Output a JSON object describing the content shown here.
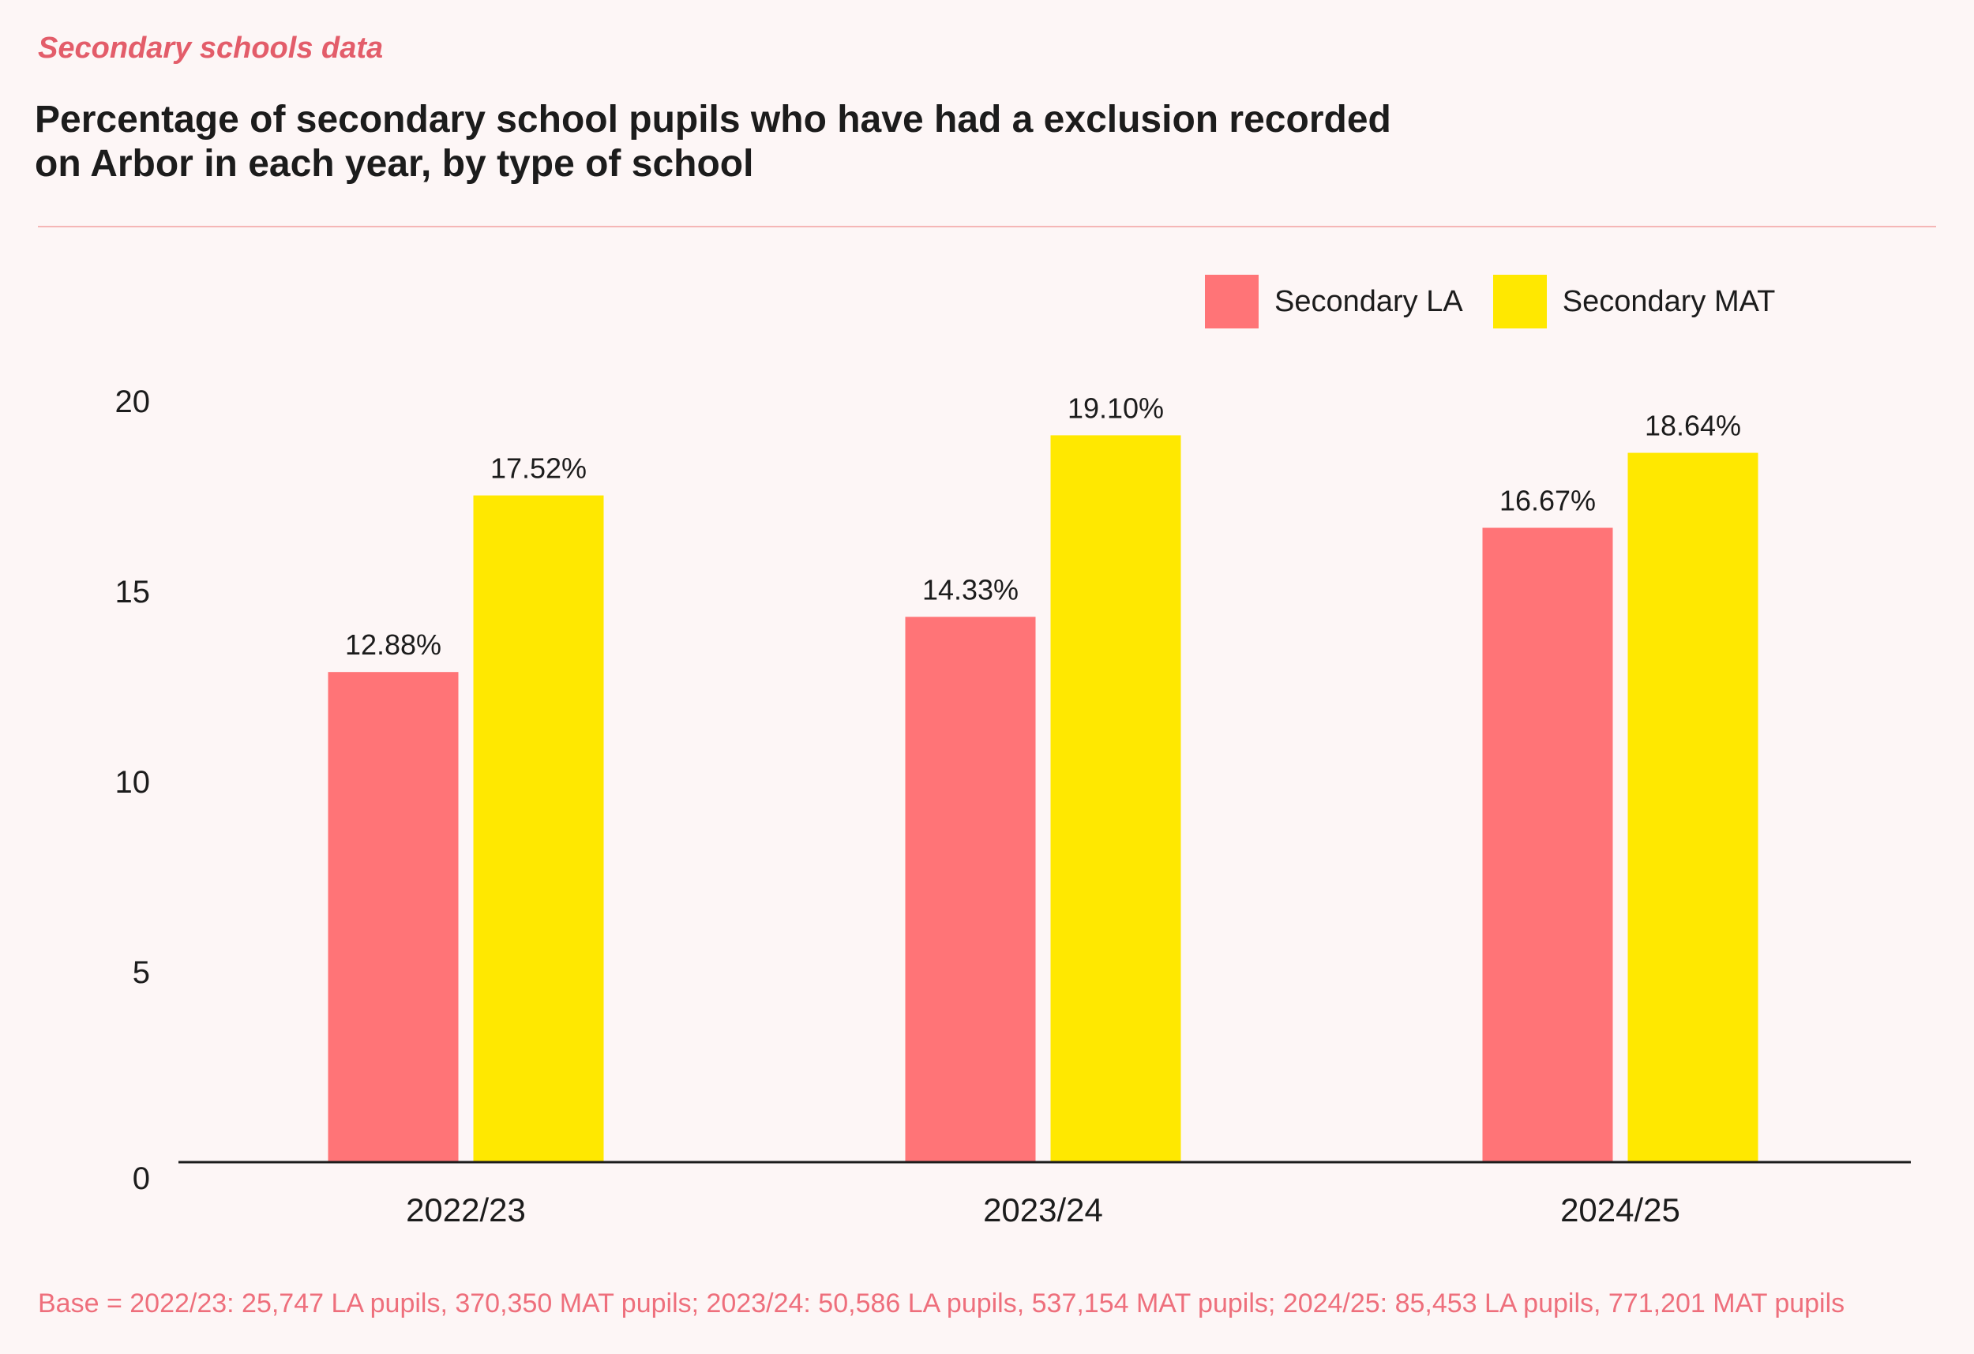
{
  "header": {
    "section_tag": "Secondary schools data",
    "title_line1": "Percentage of secondary school pupils who have had a exclusion recorded",
    "title_line2": "on Arbor in each year, by type of school"
  },
  "colors": {
    "la": "#ff7477",
    "mat": "#ffe800",
    "accent": "#e35d6a",
    "divider": "#f5b6b6",
    "axis": "#1c1c1c"
  },
  "chart_data": {
    "type": "bar",
    "categories": [
      "2022/23",
      "2023/24",
      "2024/25"
    ],
    "series": [
      {
        "name": "Secondary LA",
        "values": [
          12.88,
          14.33,
          16.67
        ],
        "labels": [
          "12.88%",
          "14.33%",
          "16.67%"
        ]
      },
      {
        "name": "Secondary MAT",
        "values": [
          17.52,
          19.1,
          18.64
        ],
        "labels": [
          "17.52%",
          "19.10%",
          "18.64%"
        ]
      }
    ],
    "yticks": [
      0,
      5,
      10,
      15,
      20
    ],
    "ylim": [
      0,
      20
    ],
    "xlabel": "",
    "ylabel": "",
    "legend_position": "top-right"
  },
  "footer": {
    "base_note": "Base = 2022/23: 25,747 LA pupils, 370,350 MAT pupils; 2023/24: 50,586 LA pupils, 537,154 MAT pupils; 2024/25: 85,453 LA pupils, 771,201 MAT pupils"
  }
}
